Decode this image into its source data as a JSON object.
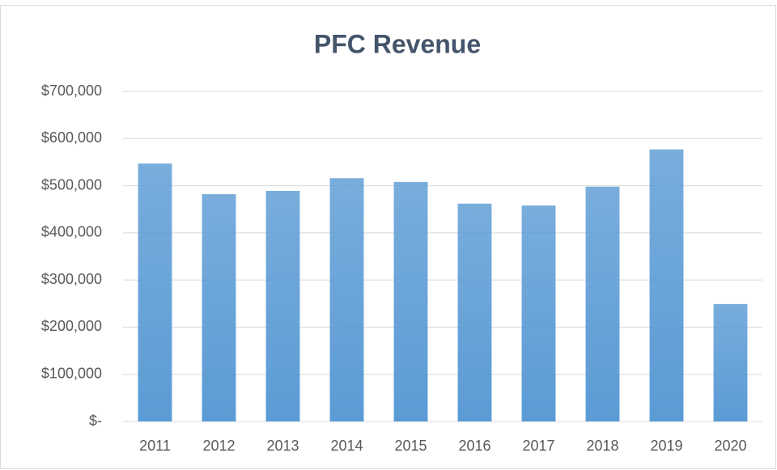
{
  "chart_data": {
    "type": "bar",
    "title": "PFC Revenue",
    "categories": [
      "2011",
      "2012",
      "2013",
      "2014",
      "2015",
      "2016",
      "2017",
      "2018",
      "2019",
      "2020"
    ],
    "values": [
      547000,
      482000,
      489000,
      516000,
      508000,
      462000,
      458000,
      498000,
      577000,
      249000
    ],
    "color": "#5b9bd5",
    "ylim": [
      0,
      700000
    ],
    "yticks": [
      {
        "value": 0,
        "label": "$-"
      },
      {
        "value": 100000,
        "label": "$100,000"
      },
      {
        "value": 200000,
        "label": "$200,000"
      },
      {
        "value": 300000,
        "label": "$300,000"
      },
      {
        "value": 400000,
        "label": "$400,000"
      },
      {
        "value": 500000,
        "label": "$500,000"
      },
      {
        "value": 600000,
        "label": "$600,000"
      },
      {
        "value": 700000,
        "label": "$700,000"
      }
    ],
    "grid": true
  }
}
